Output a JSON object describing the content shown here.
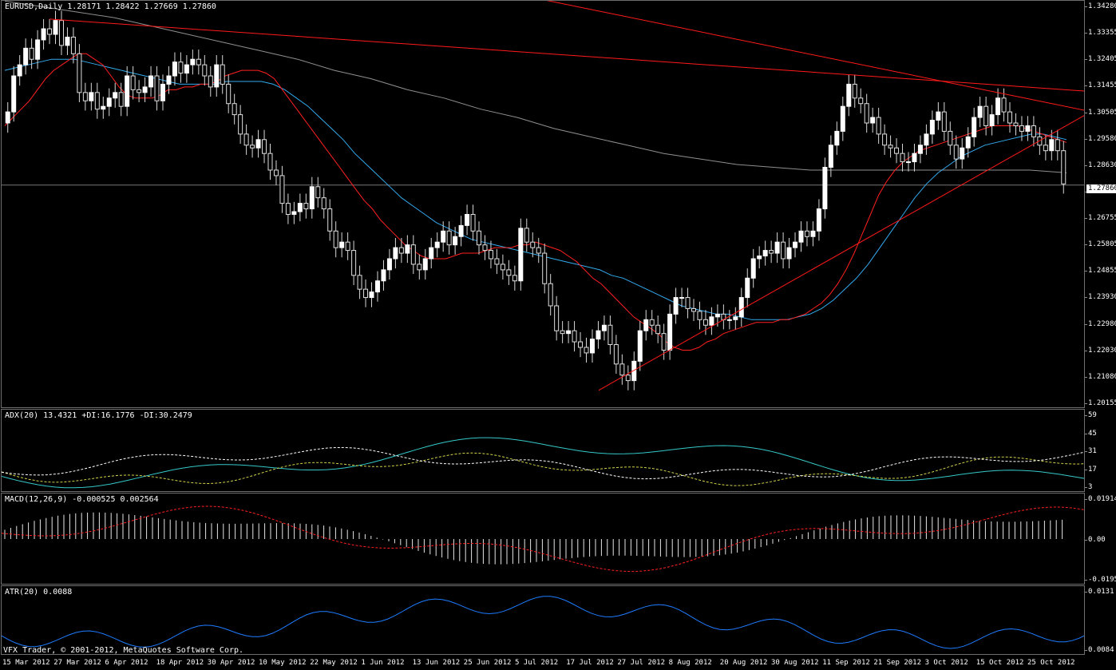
{
  "main": {
    "header": "EURUSD,Daily  1.28171 1.28422 1.27669 1.27860",
    "last_price": "1.27860",
    "y_ticks": [
      "1.34280",
      "1.33355",
      "1.32405",
      "1.31455",
      "1.30505",
      "1.29580",
      "1.28630",
      "1.27680",
      "1.26755",
      "1.25805",
      "1.24855",
      "1.23930",
      "1.22980",
      "1.22030",
      "1.21080",
      "1.20155"
    ]
  },
  "adx": {
    "header": "ADX(20) 13.4321 +DI:16.1776 -DI:30.2479",
    "ticks": [
      "59",
      "45",
      "31",
      "17",
      "3"
    ]
  },
  "macd": {
    "header": "MACD(12,26,9) -0.000525 0.002564",
    "ticks": [
      "0.01914",
      "0.00",
      "-0.01955"
    ]
  },
  "atr": {
    "header": "ATR(20) 0.0088",
    "ticks": [
      "0.0131",
      "0.0084"
    ]
  },
  "copyright": "VFX Trader, © 2001-2012, MetaQuotes Software Corp.",
  "time_axis": [
    "15 Mar 2012",
    "27 Mar 2012",
    "6 Apr 2012",
    "18 Apr 2012",
    "30 Apr 2012",
    "10 May 2012",
    "22 May 2012",
    "1 Jun 2012",
    "13 Jun 2012",
    "25 Jun 2012",
    "5 Jul 2012",
    "17 Jul 2012",
    "27 Jul 2012",
    "8 Aug 2012",
    "20 Aug 2012",
    "30 Aug 2012",
    "11 Sep 2012",
    "21 Sep 2012",
    "3 Oct 2012",
    "15 Oct 2012",
    "25 Oct 2012"
  ],
  "colors": {
    "bull": "#ffffff",
    "bear": "#e0e0e0",
    "ma_fast": "#ff2020",
    "ma_mid": "#33aaee",
    "ma_slow": "#8f8f8f",
    "trend": "#ff1a1a",
    "adx": "#35c8c8",
    "plus_di": "#d4d44a",
    "minus_di": "#ffffff",
    "macd_signal": "#ff2020",
    "atr": "#1e7cff"
  },
  "chart_data": {
    "type": "candlestick",
    "symbol": "EURUSD",
    "timeframe": "Daily",
    "ohlc_last": {
      "open": 1.28171,
      "high": 1.28422,
      "low": 1.27669,
      "close": 1.2786
    },
    "ylim": [
      1.20155,
      1.3428
    ],
    "closes": [
      1.305,
      1.318,
      1.322,
      1.328,
      1.324,
      1.331,
      1.335,
      1.333,
      1.338,
      1.329,
      1.332,
      1.326,
      1.312,
      1.309,
      1.312,
      1.306,
      1.307,
      1.31,
      1.312,
      1.307,
      1.318,
      1.313,
      1.312,
      1.314,
      1.318,
      1.309,
      1.315,
      1.318,
      1.323,
      1.319,
      1.322,
      1.324,
      1.322,
      1.318,
      1.314,
      1.322,
      1.315,
      1.308,
      1.304,
      1.297,
      1.293,
      1.292,
      1.295,
      1.29,
      1.284,
      1.282,
      1.272,
      1.268,
      1.269,
      1.272,
      1.27,
      1.278,
      1.274,
      1.27,
      1.262,
      1.256,
      1.258,
      1.255,
      1.246,
      1.241,
      1.238,
      1.24,
      1.244,
      1.248,
      1.252,
      1.256,
      1.254,
      1.257,
      1.25,
      1.248,
      1.252,
      1.256,
      1.258,
      1.262,
      1.257,
      1.26,
      1.264,
      1.268,
      1.262,
      1.257,
      1.255,
      1.252,
      1.25,
      1.248,
      1.246,
      1.244,
      1.263,
      1.258,
      1.256,
      1.254,
      1.243,
      1.235,
      1.226,
      1.225,
      1.226,
      1.222,
      1.22,
      1.218,
      1.223,
      1.226,
      1.228,
      1.221,
      1.214,
      1.21,
      1.208,
      1.215,
      1.226,
      1.23,
      1.228,
      1.225,
      1.219,
      1.232,
      1.238,
      1.238,
      1.234,
      1.233,
      1.23,
      1.228,
      1.231,
      1.232,
      1.23,
      1.23,
      1.231,
      1.238,
      1.245,
      1.252,
      1.253,
      1.255,
      1.254,
      1.258,
      1.252,
      1.256,
      1.258,
      1.262,
      1.26,
      1.262,
      1.27,
      1.285,
      1.293,
      1.298,
      1.307,
      1.315,
      1.31,
      1.308,
      1.301,
      1.303,
      1.297,
      1.293,
      1.292,
      1.29,
      1.287,
      1.287,
      1.29,
      1.293,
      1.297,
      1.302,
      1.305,
      1.298,
      1.293,
      1.288,
      1.292,
      1.296,
      1.303,
      1.307,
      1.3,
      1.304,
      1.31,
      1.305,
      1.301,
      1.3,
      1.298,
      1.3,
      1.296,
      1.293,
      1.291,
      1.295,
      1.291,
      1.279
    ],
    "ma_fast": [
      1.3,
      1.303,
      1.306,
      1.309,
      1.313,
      1.317,
      1.32,
      1.322,
      1.324,
      1.326,
      1.326,
      1.324,
      1.322,
      1.318,
      1.314,
      1.311,
      1.31,
      1.31,
      1.31,
      1.311,
      1.313,
      1.313,
      1.314,
      1.314,
      1.315,
      1.315,
      1.316,
      1.318,
      1.319,
      1.32,
      1.32,
      1.32,
      1.319,
      1.317,
      1.313,
      1.309,
      1.305,
      1.301,
      1.297,
      1.293,
      1.289,
      1.285,
      1.281,
      1.277,
      1.273,
      1.27,
      1.266,
      1.263,
      1.26,
      1.257,
      1.255,
      1.253,
      1.252,
      1.252,
      1.252,
      1.253,
      1.254,
      1.254,
      1.254,
      1.255,
      1.256,
      1.256,
      1.256,
      1.257,
      1.257,
      1.258,
      1.257,
      1.256,
      1.255,
      1.253,
      1.251,
      1.248,
      1.245,
      1.243,
      1.24,
      1.237,
      1.234,
      1.231,
      1.229,
      1.227,
      1.225,
      1.222,
      1.22,
      1.219,
      1.219,
      1.22,
      1.222,
      1.223,
      1.225,
      1.226,
      1.227,
      1.228,
      1.229,
      1.229,
      1.229,
      1.23,
      1.23,
      1.231,
      1.232,
      1.234,
      1.236,
      1.239,
      1.243,
      1.248,
      1.254,
      1.261,
      1.268,
      1.275,
      1.28,
      1.284,
      1.287,
      1.289,
      1.291,
      1.292,
      1.293,
      1.294,
      1.295,
      1.296,
      1.297,
      1.298,
      1.299,
      1.3,
      1.3,
      1.3,
      1.3,
      1.299,
      1.298,
      1.297,
      1.296,
      1.295,
      1.294
    ],
    "ma_mid": [
      1.32,
      1.321,
      1.322,
      1.323,
      1.324,
      1.324,
      1.324,
      1.323,
      1.322,
      1.321,
      1.32,
      1.319,
      1.318,
      1.317,
      1.316,
      1.315,
      1.315,
      1.315,
      1.315,
      1.316,
      1.316,
      1.316,
      1.316,
      1.315,
      1.313,
      1.31,
      1.307,
      1.303,
      1.299,
      1.295,
      1.29,
      1.286,
      1.282,
      1.278,
      1.274,
      1.271,
      1.268,
      1.265,
      1.263,
      1.261,
      1.259,
      1.258,
      1.257,
      1.256,
      1.255,
      1.254,
      1.253,
      1.252,
      1.251,
      1.25,
      1.249,
      1.248,
      1.246,
      1.245,
      1.243,
      1.241,
      1.239,
      1.237,
      1.235,
      1.234,
      1.233,
      1.232,
      1.232,
      1.231,
      1.23,
      1.23,
      1.23,
      1.23,
      1.231,
      1.232,
      1.234,
      1.237,
      1.241,
      1.245,
      1.25,
      1.256,
      1.262,
      1.268,
      1.274,
      1.279,
      1.283,
      1.286,
      1.289,
      1.291,
      1.293,
      1.294,
      1.295,
      1.296,
      1.297,
      1.297,
      1.296,
      1.295
    ],
    "ma_slow": [
      1.345,
      1.343,
      1.341,
      1.339,
      1.336,
      1.333,
      1.33,
      1.327,
      1.324,
      1.32,
      1.317,
      1.313,
      1.31,
      1.306,
      1.303,
      1.299,
      1.296,
      1.293,
      1.29,
      1.288,
      1.286,
      1.285,
      1.284,
      1.284,
      1.284,
      1.284,
      1.284,
      1.284,
      1.284,
      1.283
    ]
  }
}
